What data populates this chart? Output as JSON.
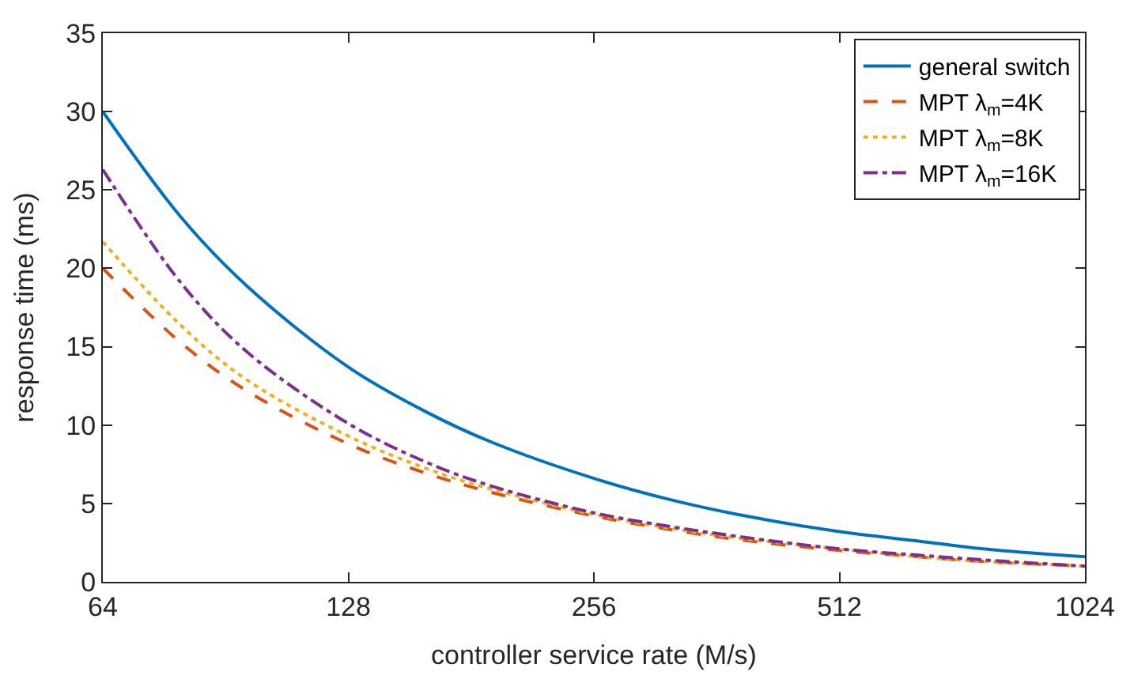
{
  "chart_data": {
    "type": "line",
    "xlabel": "controller service rate (M/s)",
    "ylabel": "response time (ms)",
    "x": [
      64,
      80,
      96,
      128,
      160,
      192,
      256,
      320,
      384,
      512,
      640,
      768,
      1024
    ],
    "log": "x",
    "xlim": [
      64,
      1024
    ],
    "xticks": [
      64,
      128,
      256,
      512,
      1024
    ],
    "ylim": [
      0,
      35
    ],
    "yticks": [
      0,
      5,
      10,
      15,
      20,
      25,
      30,
      35
    ],
    "legend": "top right",
    "series": [
      {
        "name": "general switch",
        "color": "#0072bd",
        "line_style": "solid",
        "values": [
          30,
          23.2,
          18.9,
          13.7,
          10.8,
          8.9,
          6.6,
          5.2,
          4.3,
          3.2,
          2.6,
          2.1,
          1.6
        ]
      },
      {
        "name": "MPT λ$_{m}$=4K",
        "color": "#d95319",
        "line_style": "dashed",
        "values": [
          20,
          15.2,
          12.2,
          8.8,
          6.9,
          5.7,
          4.2,
          3.3,
          2.7,
          2.0,
          1.6,
          1.3,
          1.0
        ]
      },
      {
        "name": "MPT λ$_{m}$=8K",
        "color": "#edb120",
        "line_style": "dotted",
        "values": [
          21.7,
          16.3,
          12.9,
          9.3,
          7.2,
          5.9,
          4.3,
          3.4,
          2.8,
          2.1,
          1.6,
          1.3,
          1.0
        ]
      },
      {
        "name": "MPT λ$_{m}$=16K",
        "color": "#7e2f8e",
        "line_style": "dashdot",
        "values": [
          26.3,
          19.0,
          14.7,
          10.1,
          7.6,
          6.1,
          4.4,
          3.5,
          2.9,
          2.1,
          1.7,
          1.4,
          1.0
        ]
      }
    ]
  }
}
